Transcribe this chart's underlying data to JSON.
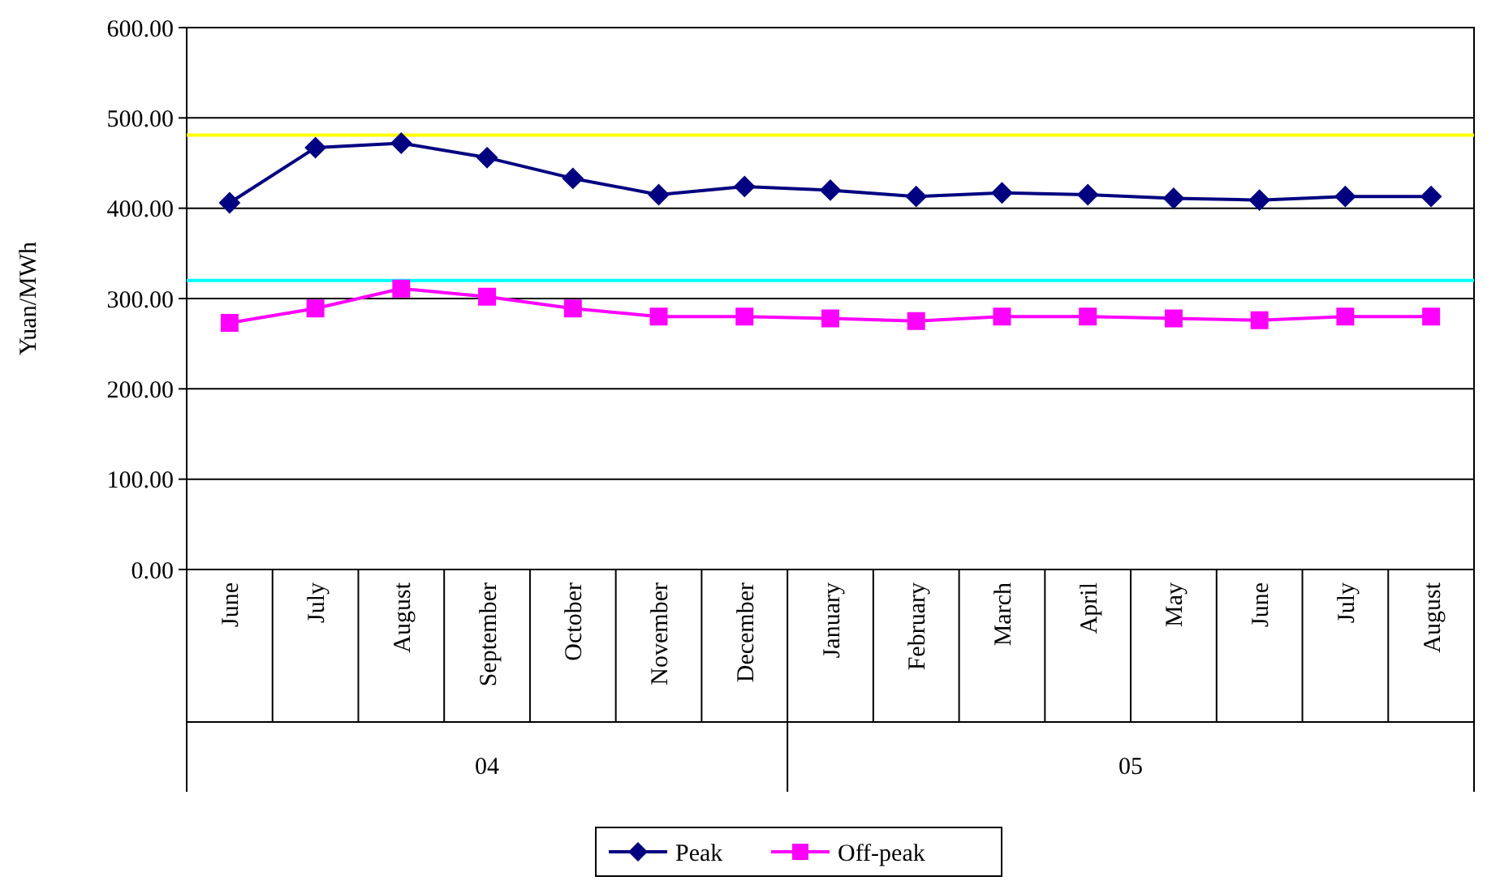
{
  "chart_data": {
    "type": "line",
    "ylabel": "Yuan/MWh",
    "categories": [
      "June",
      "July",
      "August",
      "September",
      "October",
      "November",
      "December",
      "January",
      "February",
      "March",
      "April",
      "May",
      "June",
      "July",
      "August"
    ],
    "series": [
      {
        "name": "Peak",
        "color": "#000080",
        "marker": "diamond",
        "values": [
          406,
          467,
          472,
          456,
          433,
          415,
          424,
          420,
          413,
          417,
          415,
          411,
          409,
          413,
          413
        ]
      },
      {
        "name": "Off-peak",
        "color": "#ff00ff",
        "marker": "square",
        "values": [
          273,
          289,
          311,
          302,
          289,
          280,
          280,
          278,
          275,
          280,
          280,
          278,
          276,
          280,
          280
        ]
      }
    ],
    "ref_lines": [
      {
        "axis": "y",
        "value": 481,
        "color": "#ffff00"
      },
      {
        "axis": "y",
        "value": 320,
        "color": "#00ffff"
      }
    ],
    "annotations": [
      "04",
      "05"
    ],
    "ylim": [
      0,
      600
    ],
    "yticks": [
      {
        "value": 0,
        "label": "0.00"
      },
      {
        "value": 100,
        "label": "100.00"
      },
      {
        "value": 200,
        "label": "200.00"
      },
      {
        "value": 300,
        "label": "300.00"
      },
      {
        "value": 400,
        "label": "400.00"
      },
      {
        "value": 500,
        "label": "500.00"
      },
      {
        "value": 600,
        "label": "600.00"
      }
    ],
    "grid": "y",
    "legend": "bottom"
  }
}
